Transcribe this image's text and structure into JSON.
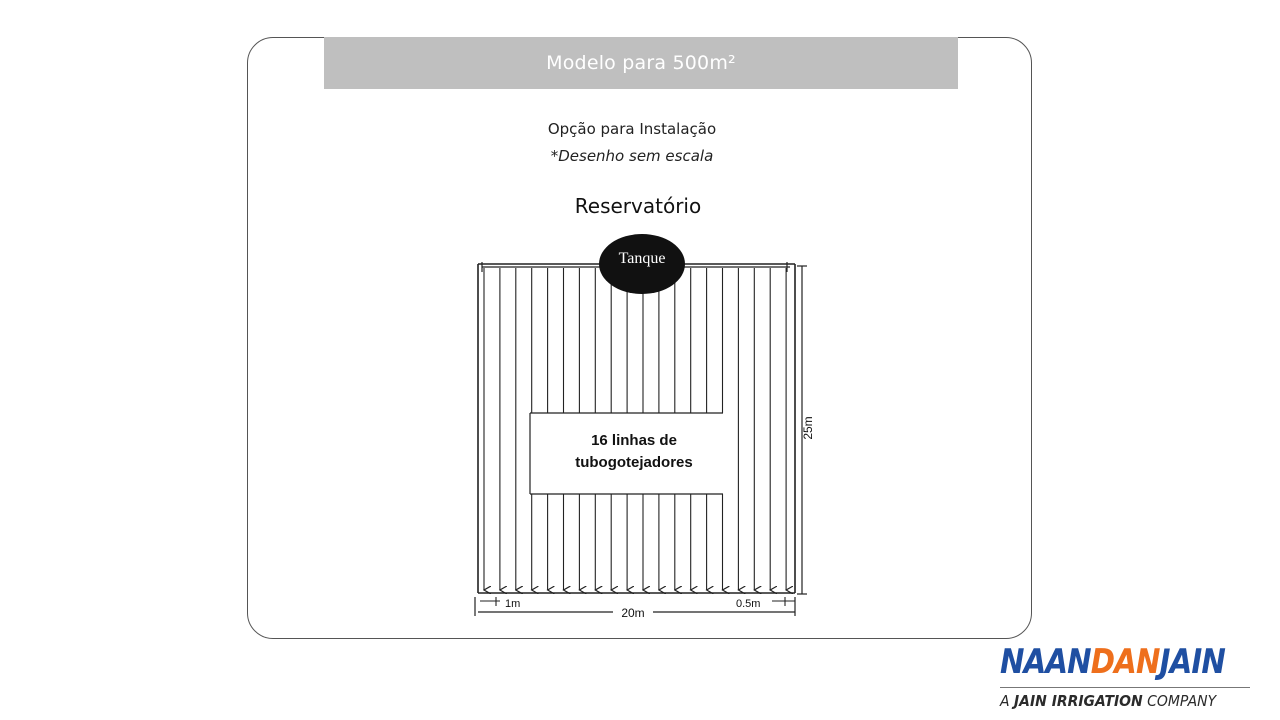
{
  "slide": {
    "title": "Modelo para 500m²",
    "subtitle": "Opção para Instalação",
    "note": "*Desenho sem escala",
    "reservoir_label": "Reservatório"
  },
  "diagram": {
    "tank_label": "Tanque",
    "center_label_line1": "16 linhas de",
    "center_label_line2": "tubogotejadores",
    "dim_height": "25m",
    "dim_width": "20m",
    "dim_left_spacing": "1m",
    "dim_right_spacing": "0.5m",
    "line_count": 16,
    "line_color": "#222222",
    "tank_color": "#111111"
  },
  "logo": {
    "word_part1": "NAAN",
    "word_part2": "DAN",
    "word_part3": "JAIN",
    "tagline_prefix": "A ",
    "tagline_bold": "JAIN IRRIGATION",
    "tagline_suffix": " COMPANY",
    "color_blue": "#1f4fa2",
    "color_orange": "#ee6f1c"
  }
}
